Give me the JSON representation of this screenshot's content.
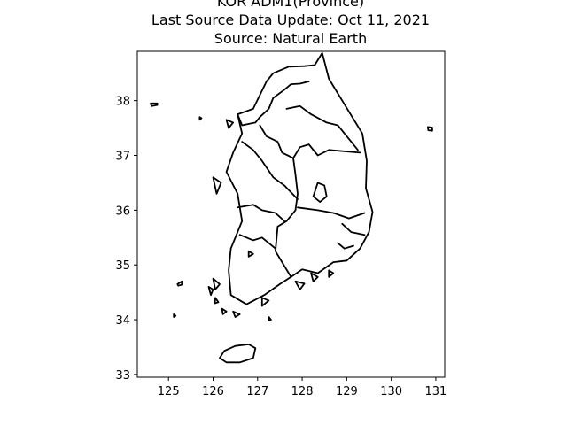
{
  "title": {
    "line1": "KOR ADM1(Province)",
    "line2": "Last Source Data Update: Oct 11, 2021",
    "line3": "Source: Natural Earth"
  },
  "chart_data": {
    "type": "map",
    "xlim": [
      124.3,
      131.2
    ],
    "ylim": [
      32.95,
      38.9
    ],
    "x_ticks": [
      125,
      126,
      127,
      128,
      129,
      130,
      131
    ],
    "y_ticks": [
      33,
      34,
      35,
      36,
      37,
      38
    ],
    "grid": false,
    "line_color": "#000000",
    "fill": "none",
    "coastline": [
      [
        127.35,
        38.5
      ],
      [
        127.7,
        38.62
      ],
      [
        128.05,
        38.63
      ],
      [
        128.28,
        38.65
      ],
      [
        128.45,
        38.87
      ],
      [
        128.6,
        38.4
      ],
      [
        128.9,
        38.0
      ],
      [
        129.35,
        37.4
      ],
      [
        129.45,
        36.9
      ],
      [
        129.43,
        36.4
      ],
      [
        129.58,
        35.97
      ],
      [
        129.5,
        35.6
      ],
      [
        129.3,
        35.3
      ],
      [
        129.0,
        35.08
      ],
      [
        128.7,
        35.05
      ],
      [
        128.35,
        34.85
      ],
      [
        128.0,
        34.92
      ],
      [
        127.75,
        34.78
      ],
      [
        127.5,
        34.65
      ],
      [
        127.15,
        34.45
      ],
      [
        126.75,
        34.28
      ],
      [
        126.4,
        34.45
      ],
      [
        126.35,
        34.9
      ],
      [
        126.4,
        35.3
      ],
      [
        126.65,
        35.8
      ],
      [
        126.55,
        36.3
      ],
      [
        126.3,
        36.7
      ],
      [
        126.45,
        37.05
      ],
      [
        126.65,
        37.4
      ],
      [
        126.55,
        37.75
      ],
      [
        126.9,
        37.85
      ],
      [
        127.2,
        38.35
      ],
      [
        127.35,
        38.5
      ]
    ],
    "boundaries": [
      [
        [
          126.55,
          37.75
        ],
        [
          126.65,
          37.55
        ],
        [
          126.95,
          37.6
        ],
        [
          127.05,
          37.7
        ],
        [
          127.25,
          37.85
        ],
        [
          127.35,
          38.05
        ],
        [
          127.6,
          38.2
        ],
        [
          127.75,
          38.3
        ],
        [
          127.95,
          38.31
        ],
        [
          128.15,
          38.35
        ]
      ],
      [
        [
          127.65,
          37.85
        ],
        [
          127.95,
          37.9
        ],
        [
          128.2,
          37.75
        ],
        [
          128.55,
          37.6
        ],
        [
          128.8,
          37.55
        ],
        [
          129.25,
          37.1
        ]
      ],
      [
        [
          127.05,
          37.55
        ],
        [
          127.2,
          37.35
        ],
        [
          127.45,
          37.25
        ],
        [
          127.55,
          37.05
        ],
        [
          127.8,
          36.95
        ],
        [
          127.95,
          37.15
        ],
        [
          128.15,
          37.2
        ],
        [
          128.35,
          37.0
        ],
        [
          128.6,
          37.1
        ],
        [
          129.3,
          37.05
        ]
      ],
      [
        [
          126.65,
          37.25
        ],
        [
          126.9,
          37.1
        ],
        [
          127.1,
          36.9
        ],
        [
          127.35,
          36.6
        ],
        [
          127.6,
          36.45
        ],
        [
          127.9,
          36.2
        ]
      ],
      [
        [
          127.8,
          36.95
        ],
        [
          127.85,
          36.65
        ],
        [
          127.9,
          36.3
        ],
        [
          127.85,
          36.0
        ],
        [
          127.65,
          35.8
        ],
        [
          127.45,
          35.7
        ],
        [
          127.4,
          35.25
        ],
        [
          127.55,
          35.05
        ],
        [
          127.75,
          34.78
        ]
      ],
      [
        [
          126.55,
          36.05
        ],
        [
          126.9,
          36.1
        ],
        [
          127.1,
          36.0
        ],
        [
          127.4,
          35.95
        ],
        [
          127.6,
          35.8
        ]
      ],
      [
        [
          126.6,
          35.55
        ],
        [
          126.9,
          35.45
        ],
        [
          127.1,
          35.5
        ],
        [
          127.4,
          35.3
        ]
      ],
      [
        [
          127.9,
          36.05
        ],
        [
          128.35,
          36.0
        ],
        [
          128.7,
          35.95
        ],
        [
          129.05,
          35.85
        ],
        [
          129.4,
          35.95
        ]
      ],
      [
        [
          128.35,
          36.5
        ],
        [
          128.5,
          36.45
        ],
        [
          128.55,
          36.25
        ],
        [
          128.4,
          36.15
        ],
        [
          128.25,
          36.25
        ],
        [
          128.35,
          36.5
        ]
      ],
      [
        [
          128.9,
          35.75
        ],
        [
          129.1,
          35.6
        ],
        [
          129.4,
          35.55
        ]
      ],
      [
        [
          128.8,
          35.4
        ],
        [
          128.95,
          35.3
        ],
        [
          129.15,
          35.35
        ]
      ]
    ],
    "islands": [
      [
        [
          126.15,
          33.3
        ],
        [
          126.3,
          33.22
        ],
        [
          126.6,
          33.22
        ],
        [
          126.9,
          33.3
        ],
        [
          126.95,
          33.48
        ],
        [
          126.8,
          33.55
        ],
        [
          126.5,
          33.52
        ],
        [
          126.25,
          33.43
        ],
        [
          126.15,
          33.3
        ]
      ],
      [
        [
          130.82,
          37.52
        ],
        [
          130.92,
          37.51
        ],
        [
          130.92,
          37.45
        ],
        [
          130.83,
          37.46
        ],
        [
          130.82,
          37.52
        ]
      ],
      [
        [
          124.6,
          37.95
        ],
        [
          124.75,
          37.95
        ],
        [
          124.75,
          37.92
        ],
        [
          124.62,
          37.9
        ],
        [
          124.6,
          37.95
        ]
      ],
      [
        [
          125.2,
          34.65
        ],
        [
          125.3,
          34.7
        ],
        [
          125.3,
          34.64
        ],
        [
          125.22,
          34.62
        ],
        [
          125.2,
          34.65
        ]
      ],
      [
        [
          125.12,
          34.1
        ],
        [
          125.16,
          34.07
        ],
        [
          125.12,
          34.05
        ]
      ],
      [
        [
          126.0,
          36.6
        ],
        [
          126.18,
          36.5
        ],
        [
          126.08,
          36.3
        ],
        [
          126.0,
          36.6
        ]
      ],
      [
        [
          126.8,
          35.25
        ],
        [
          126.9,
          35.2
        ],
        [
          126.8,
          35.15
        ]
      ],
      [
        [
          127.1,
          34.4
        ],
        [
          127.25,
          34.35
        ],
        [
          127.1,
          34.25
        ],
        [
          127.1,
          34.4
        ]
      ],
      [
        [
          127.85,
          34.7
        ],
        [
          128.05,
          34.66
        ],
        [
          127.95,
          34.55
        ],
        [
          127.85,
          34.7
        ]
      ],
      [
        [
          128.2,
          34.85
        ],
        [
          128.35,
          34.78
        ],
        [
          128.25,
          34.7
        ],
        [
          128.2,
          34.85
        ]
      ],
      [
        [
          128.6,
          34.9
        ],
        [
          128.7,
          34.85
        ],
        [
          128.6,
          34.78
        ],
        [
          128.6,
          34.9
        ]
      ],
      [
        [
          126.0,
          34.75
        ],
        [
          126.15,
          34.65
        ],
        [
          126.05,
          34.55
        ],
        [
          126.0,
          34.75
        ]
      ],
      [
        [
          125.9,
          34.6
        ],
        [
          126.0,
          34.55
        ],
        [
          125.95,
          34.45
        ],
        [
          125.9,
          34.6
        ]
      ],
      [
        [
          126.2,
          34.2
        ],
        [
          126.3,
          34.15
        ],
        [
          126.22,
          34.1
        ],
        [
          126.2,
          34.2
        ]
      ],
      [
        [
          126.45,
          34.15
        ],
        [
          126.6,
          34.1
        ],
        [
          126.5,
          34.05
        ],
        [
          126.45,
          34.15
        ]
      ],
      [
        [
          127.25,
          34.05
        ],
        [
          127.3,
          34.0
        ],
        [
          127.24,
          33.98
        ]
      ],
      [
        [
          126.05,
          34.4
        ],
        [
          126.12,
          34.32
        ],
        [
          126.04,
          34.3
        ]
      ],
      [
        [
          126.3,
          37.65
        ],
        [
          126.45,
          37.6
        ],
        [
          126.35,
          37.5
        ],
        [
          126.3,
          37.65
        ]
      ],
      [
        [
          125.7,
          37.7
        ],
        [
          125.74,
          37.68
        ],
        [
          125.7,
          37.65
        ]
      ]
    ]
  }
}
